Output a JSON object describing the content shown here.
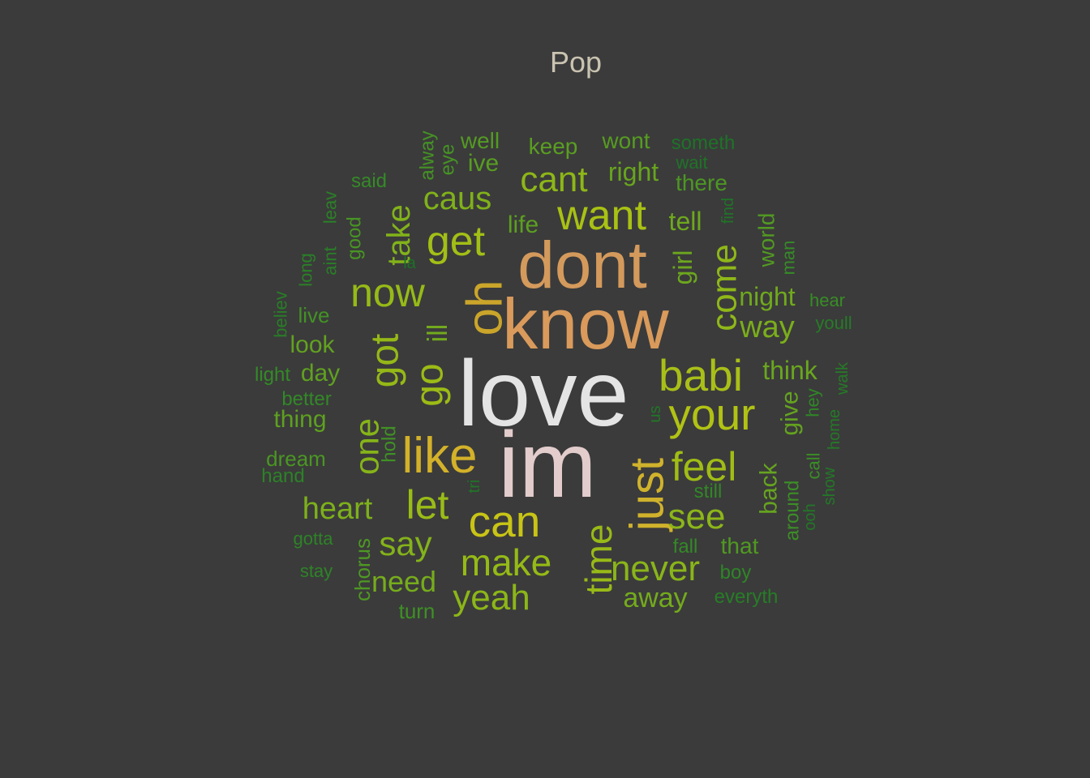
{
  "chart_data": {
    "type": "wordcloud",
    "title": "Pop",
    "words": [
      {
        "text": "love",
        "weight": 100,
        "color": "#e4e4e4"
      },
      {
        "text": "im",
        "weight": 98,
        "color": "#e3cccc"
      },
      {
        "text": "know",
        "weight": 84,
        "color": "#d99a5b"
      },
      {
        "text": "dont",
        "weight": 80,
        "color": "#d49a5c"
      },
      {
        "text": "oh",
        "weight": 62,
        "color": "#caa52a"
      },
      {
        "text": "like",
        "weight": 62,
        "color": "#d3b129"
      },
      {
        "text": "just",
        "weight": 62,
        "color": "#d0b22c"
      },
      {
        "text": "babi",
        "weight": 55,
        "color": "#a9bf18"
      },
      {
        "text": "your",
        "weight": 55,
        "color": "#b1c214"
      },
      {
        "text": "can",
        "weight": 55,
        "color": "#c8c416"
      },
      {
        "text": "want",
        "weight": 52,
        "color": "#a9c114"
      },
      {
        "text": "get",
        "weight": 52,
        "color": "#a2bf16"
      },
      {
        "text": "go",
        "weight": 52,
        "color": "#9cbb16"
      },
      {
        "text": "got",
        "weight": 50,
        "color": "#95b817"
      },
      {
        "text": "now",
        "weight": 50,
        "color": "#96ba17"
      },
      {
        "text": "feel",
        "weight": 50,
        "color": "#a0bd15"
      },
      {
        "text": "let",
        "weight": 50,
        "color": "#9abc16"
      },
      {
        "text": "time",
        "weight": 48,
        "color": "#98ba17"
      },
      {
        "text": "make",
        "weight": 46,
        "color": "#95ba16"
      },
      {
        "text": "come",
        "weight": 46,
        "color": "#8fb818"
      },
      {
        "text": "cant",
        "weight": 45,
        "color": "#8db618"
      },
      {
        "text": "see",
        "weight": 44,
        "color": "#8cb619"
      },
      {
        "text": "never",
        "weight": 44,
        "color": "#8ab519"
      },
      {
        "text": "yeah",
        "weight": 44,
        "color": "#8cb618"
      },
      {
        "text": "one",
        "weight": 44,
        "color": "#86b419"
      },
      {
        "text": "say",
        "weight": 42,
        "color": "#84b21a"
      },
      {
        "text": "take",
        "weight": 40,
        "color": "#82b21a"
      },
      {
        "text": "caus",
        "weight": 40,
        "color": "#80b11a"
      },
      {
        "text": "heart",
        "weight": 39,
        "color": "#7db01b"
      },
      {
        "text": "way",
        "weight": 38,
        "color": "#7bae1b"
      },
      {
        "text": "need",
        "weight": 37,
        "color": "#76ac1c"
      },
      {
        "text": "away",
        "weight": 36,
        "color": "#74ab1c"
      },
      {
        "text": "ill",
        "weight": 35,
        "color": "#72aa1d"
      },
      {
        "text": "night",
        "weight": 34,
        "color": "#70a91d"
      },
      {
        "text": "tell",
        "weight": 33,
        "color": "#6ea81d"
      },
      {
        "text": "girl",
        "weight": 33,
        "color": "#6ca71e"
      },
      {
        "text": "think",
        "weight": 32,
        "color": "#6aa61e"
      },
      {
        "text": "right",
        "weight": 32,
        "color": "#68a51e"
      },
      {
        "text": "back",
        "weight": 32,
        "color": "#66a41f"
      },
      {
        "text": "give",
        "weight": 31,
        "color": "#64a31f"
      },
      {
        "text": "look",
        "weight": 31,
        "color": "#62a21f"
      },
      {
        "text": "day",
        "weight": 31,
        "color": "#60a120"
      },
      {
        "text": "thing",
        "weight": 30,
        "color": "#5ea020"
      },
      {
        "text": "life",
        "weight": 30,
        "color": "#5c9f20"
      },
      {
        "text": "keep",
        "weight": 29,
        "color": "#5a9e21"
      },
      {
        "text": "ive",
        "weight": 29,
        "color": "#589d21"
      },
      {
        "text": "wont",
        "weight": 28,
        "color": "#569c21"
      },
      {
        "text": "well",
        "weight": 28,
        "color": "#549b22"
      },
      {
        "text": "world",
        "weight": 28,
        "color": "#529a22"
      },
      {
        "text": "that",
        "weight": 28,
        "color": "#509922"
      },
      {
        "text": "chorus",
        "weight": 25,
        "color": "#4e9823"
      },
      {
        "text": "there",
        "weight": 25,
        "color": "#4c9723"
      },
      {
        "text": "dream",
        "weight": 25,
        "color": "#4a9623"
      },
      {
        "text": "good",
        "weight": 24,
        "color": "#489524"
      },
      {
        "text": "eye",
        "weight": 24,
        "color": "#469424"
      },
      {
        "text": "alway",
        "weight": 24,
        "color": "#449324"
      },
      {
        "text": "live",
        "weight": 24,
        "color": "#429225"
      },
      {
        "text": "hold",
        "weight": 24,
        "color": "#409125"
      },
      {
        "text": "turn",
        "weight": 24,
        "color": "#3e9025"
      },
      {
        "text": "around",
        "weight": 23,
        "color": "#3c8f26"
      },
      {
        "text": "call",
        "weight": 23,
        "color": "#3a8e26"
      },
      {
        "text": "hear",
        "weight": 23,
        "color": "#388d26"
      },
      {
        "text": "man",
        "weight": 23,
        "color": "#368c27"
      },
      {
        "text": "said",
        "weight": 23,
        "color": "#358b27"
      },
      {
        "text": "light",
        "weight": 23,
        "color": "#348a27"
      },
      {
        "text": "fall",
        "weight": 23,
        "color": "#338927"
      },
      {
        "text": "better",
        "weight": 22,
        "color": "#328827"
      },
      {
        "text": "still",
        "weight": 22,
        "color": "#318727"
      },
      {
        "text": "hey",
        "weight": 22,
        "color": "#308627"
      },
      {
        "text": "boy",
        "weight": 22,
        "color": "#2f8527"
      },
      {
        "text": "stay",
        "weight": 22,
        "color": "#2e8427"
      },
      {
        "text": "gotta",
        "weight": 22,
        "color": "#2d8327"
      },
      {
        "text": "hand",
        "weight": 22,
        "color": "#2c8227"
      },
      {
        "text": "leav",
        "weight": 22,
        "color": "#2b8127"
      },
      {
        "text": "long",
        "weight": 22,
        "color": "#2a8027"
      },
      {
        "text": "aint",
        "weight": 22,
        "color": "#297f27"
      },
      {
        "text": "believ",
        "weight": 22,
        "color": "#287e27"
      },
      {
        "text": "everyth",
        "weight": 22,
        "color": "#277d27"
      },
      {
        "text": "youll",
        "weight": 22,
        "color": "#267c27"
      },
      {
        "text": "walk",
        "weight": 21,
        "color": "#257b27"
      },
      {
        "text": "home",
        "weight": 21,
        "color": "#247a27"
      },
      {
        "text": "show",
        "weight": 21,
        "color": "#237927"
      },
      {
        "text": "ooh",
        "weight": 21,
        "color": "#227827"
      },
      {
        "text": "us",
        "weight": 21,
        "color": "#217727"
      },
      {
        "text": "tri",
        "weight": 21,
        "color": "#207627"
      },
      {
        "text": "find",
        "weight": 21,
        "color": "#1f7527"
      },
      {
        "text": "wait",
        "weight": 21,
        "color": "#1e7427"
      },
      {
        "text": "someth",
        "weight": 20,
        "color": "#1d7327"
      },
      {
        "text": "la",
        "weight": 20,
        "color": "#1c7227"
      }
    ]
  }
}
